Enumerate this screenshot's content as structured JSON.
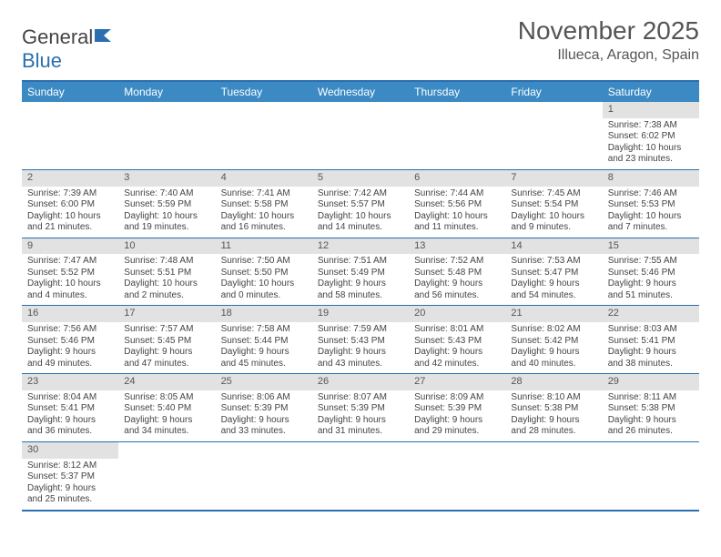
{
  "brand": {
    "part1": "General",
    "part2": "Blue"
  },
  "title": "November 2025",
  "location": "Illueca, Aragon, Spain",
  "colors": {
    "header_bg": "#3b8ac4",
    "border": "#2b6fb0",
    "daynum_bg": "#e2e2e2",
    "text": "#444444",
    "title_text": "#555555"
  },
  "day_headers": [
    "Sunday",
    "Monday",
    "Tuesday",
    "Wednesday",
    "Thursday",
    "Friday",
    "Saturday"
  ],
  "weeks": [
    [
      null,
      null,
      null,
      null,
      null,
      null,
      {
        "n": "1",
        "sr": "7:38 AM",
        "ss": "6:02 PM",
        "dl": "10 hours and 23 minutes."
      }
    ],
    [
      {
        "n": "2",
        "sr": "7:39 AM",
        "ss": "6:00 PM",
        "dl": "10 hours and 21 minutes."
      },
      {
        "n": "3",
        "sr": "7:40 AM",
        "ss": "5:59 PM",
        "dl": "10 hours and 19 minutes."
      },
      {
        "n": "4",
        "sr": "7:41 AM",
        "ss": "5:58 PM",
        "dl": "10 hours and 16 minutes."
      },
      {
        "n": "5",
        "sr": "7:42 AM",
        "ss": "5:57 PM",
        "dl": "10 hours and 14 minutes."
      },
      {
        "n": "6",
        "sr": "7:44 AM",
        "ss": "5:56 PM",
        "dl": "10 hours and 11 minutes."
      },
      {
        "n": "7",
        "sr": "7:45 AM",
        "ss": "5:54 PM",
        "dl": "10 hours and 9 minutes."
      },
      {
        "n": "8",
        "sr": "7:46 AM",
        "ss": "5:53 PM",
        "dl": "10 hours and 7 minutes."
      }
    ],
    [
      {
        "n": "9",
        "sr": "7:47 AM",
        "ss": "5:52 PM",
        "dl": "10 hours and 4 minutes."
      },
      {
        "n": "10",
        "sr": "7:48 AM",
        "ss": "5:51 PM",
        "dl": "10 hours and 2 minutes."
      },
      {
        "n": "11",
        "sr": "7:50 AM",
        "ss": "5:50 PM",
        "dl": "10 hours and 0 minutes."
      },
      {
        "n": "12",
        "sr": "7:51 AM",
        "ss": "5:49 PM",
        "dl": "9 hours and 58 minutes."
      },
      {
        "n": "13",
        "sr": "7:52 AM",
        "ss": "5:48 PM",
        "dl": "9 hours and 56 minutes."
      },
      {
        "n": "14",
        "sr": "7:53 AM",
        "ss": "5:47 PM",
        "dl": "9 hours and 54 minutes."
      },
      {
        "n": "15",
        "sr": "7:55 AM",
        "ss": "5:46 PM",
        "dl": "9 hours and 51 minutes."
      }
    ],
    [
      {
        "n": "16",
        "sr": "7:56 AM",
        "ss": "5:46 PM",
        "dl": "9 hours and 49 minutes."
      },
      {
        "n": "17",
        "sr": "7:57 AM",
        "ss": "5:45 PM",
        "dl": "9 hours and 47 minutes."
      },
      {
        "n": "18",
        "sr": "7:58 AM",
        "ss": "5:44 PM",
        "dl": "9 hours and 45 minutes."
      },
      {
        "n": "19",
        "sr": "7:59 AM",
        "ss": "5:43 PM",
        "dl": "9 hours and 43 minutes."
      },
      {
        "n": "20",
        "sr": "8:01 AM",
        "ss": "5:43 PM",
        "dl": "9 hours and 42 minutes."
      },
      {
        "n": "21",
        "sr": "8:02 AM",
        "ss": "5:42 PM",
        "dl": "9 hours and 40 minutes."
      },
      {
        "n": "22",
        "sr": "8:03 AM",
        "ss": "5:41 PM",
        "dl": "9 hours and 38 minutes."
      }
    ],
    [
      {
        "n": "23",
        "sr": "8:04 AM",
        "ss": "5:41 PM",
        "dl": "9 hours and 36 minutes."
      },
      {
        "n": "24",
        "sr": "8:05 AM",
        "ss": "5:40 PM",
        "dl": "9 hours and 34 minutes."
      },
      {
        "n": "25",
        "sr": "8:06 AM",
        "ss": "5:39 PM",
        "dl": "9 hours and 33 minutes."
      },
      {
        "n": "26",
        "sr": "8:07 AM",
        "ss": "5:39 PM",
        "dl": "9 hours and 31 minutes."
      },
      {
        "n": "27",
        "sr": "8:09 AM",
        "ss": "5:39 PM",
        "dl": "9 hours and 29 minutes."
      },
      {
        "n": "28",
        "sr": "8:10 AM",
        "ss": "5:38 PM",
        "dl": "9 hours and 28 minutes."
      },
      {
        "n": "29",
        "sr": "8:11 AM",
        "ss": "5:38 PM",
        "dl": "9 hours and 26 minutes."
      }
    ],
    [
      {
        "n": "30",
        "sr": "8:12 AM",
        "ss": "5:37 PM",
        "dl": "9 hours and 25 minutes."
      },
      null,
      null,
      null,
      null,
      null,
      null
    ]
  ],
  "labels": {
    "sunrise": "Sunrise:",
    "sunset": "Sunset:",
    "daylight": "Daylight:"
  }
}
